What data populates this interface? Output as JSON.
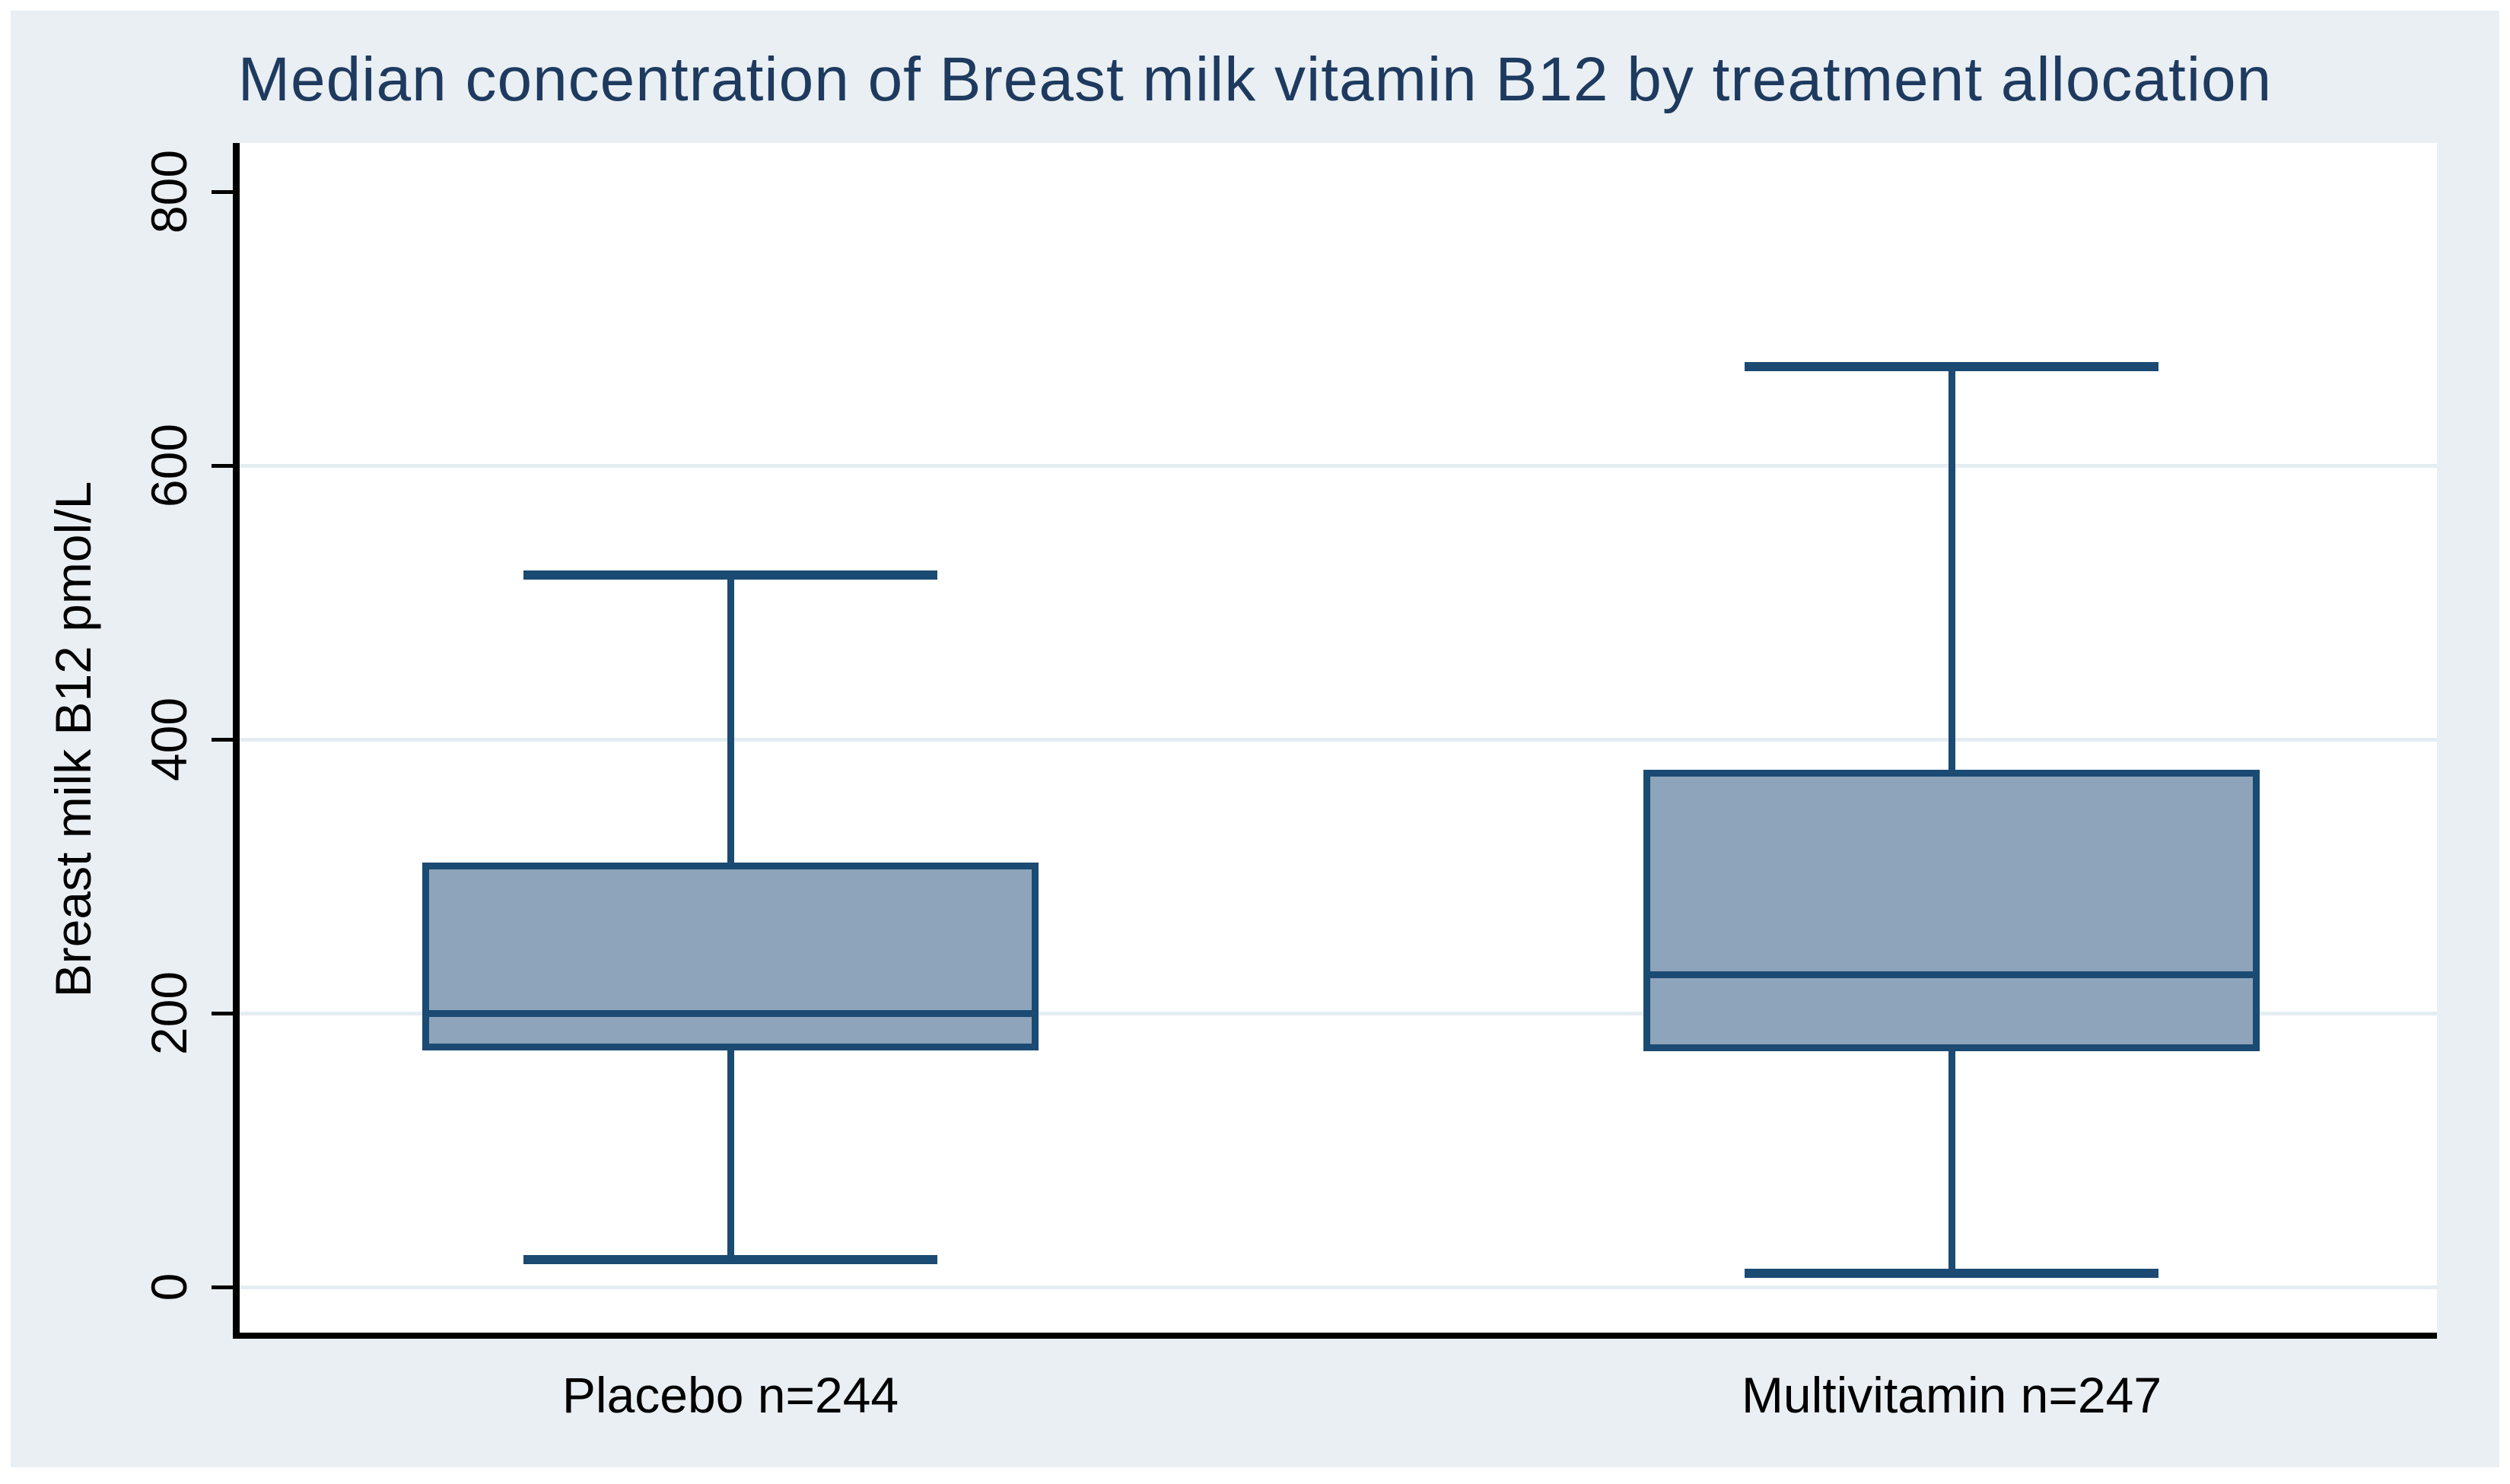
{
  "title": "Median concentration of Breast milk vitamin B12 by treatment allocation",
  "y_axis_title": "Breast milk B12 pmol/L",
  "colors": {
    "figure_background": "#e9eff3",
    "plot_background": "#ffffff",
    "gridline": "#e4edf2",
    "box_fill": "#8da4ba",
    "box_border": "#1b4a73",
    "title_text": "#1e3a5f",
    "axis_text": "#000000"
  },
  "chart_data": {
    "type": "box",
    "title": "Median concentration of Breast milk vitamin B12 by treatment allocation",
    "xlabel": "",
    "ylabel": "Breast milk B12 pmol/L",
    "ylim": [
      0,
      800
    ],
    "grid": "horizontal",
    "legend_position": "none",
    "y_ticks": [
      0,
      200,
      400,
      600,
      800
    ],
    "y_gridlines": [
      0,
      200,
      400,
      600
    ],
    "categories": [
      "Placebo n=244",
      "Multivitamin n=247"
    ],
    "series": [
      {
        "name": "Placebo",
        "label": "Placebo n=244",
        "n": 244,
        "whisker_low": 20,
        "q1": 173,
        "median": 200,
        "q3": 310,
        "whisker_high": 520
      },
      {
        "name": "Multivitamin",
        "label": "Multivitamin n=247",
        "n": 247,
        "whisker_low": 10,
        "q1": 172,
        "median": 228,
        "q3": 378,
        "whisker_high": 672
      }
    ]
  }
}
